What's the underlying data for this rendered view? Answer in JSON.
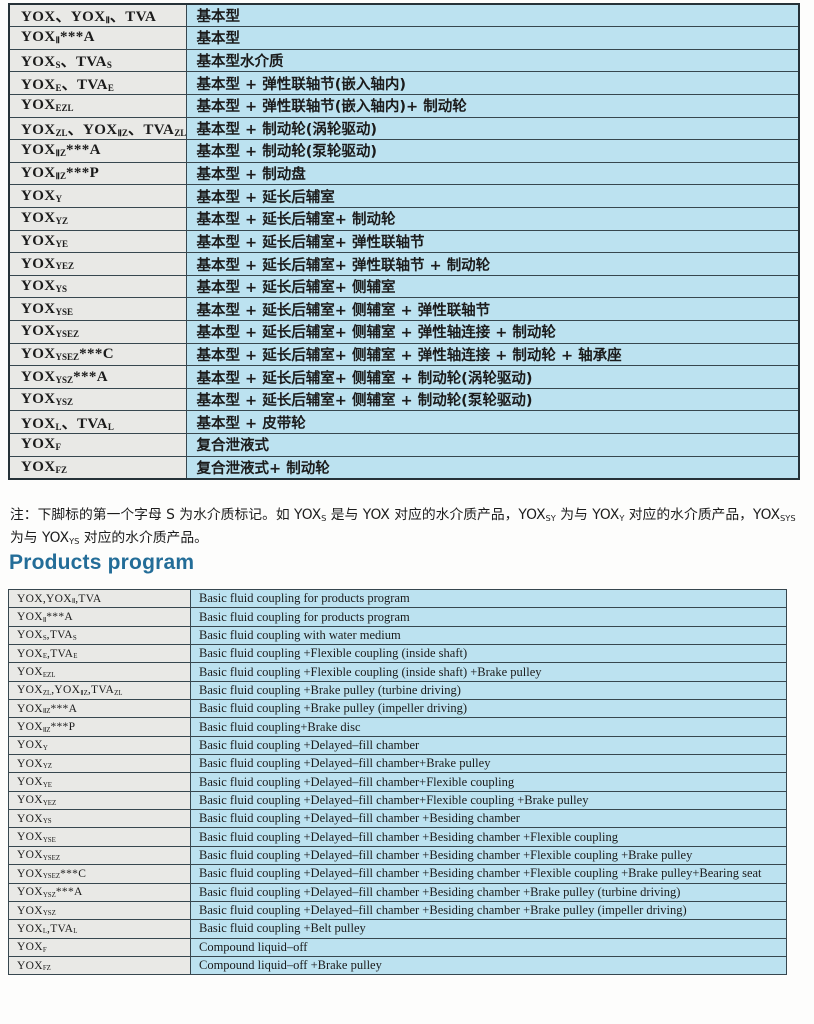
{
  "colors": {
    "cell_gray": "#e9e9e6",
    "cell_blue": "#bce2f0",
    "border_dark": "#37474f",
    "heading_blue": "#236d98",
    "text": "#1b1b1b"
  },
  "cn_table": {
    "rows": [
      {
        "model": "YOX、YOX_{Ⅱ}、TVA",
        "desc": "基本型"
      },
      {
        "model": "YOX_{Ⅱ}***A",
        "desc": "基本型"
      },
      {
        "model": "YOX_{S}、TVA_{S}",
        "desc": "基本型水介质"
      },
      {
        "model": "YOX_{E}、TVA_{E}",
        "desc": "基本型 + 弹性联轴节(嵌入轴内)"
      },
      {
        "model": "YOX_{EZL}",
        "desc": "基本型 + 弹性联轴节(嵌入轴内)+ 制动轮"
      },
      {
        "model": "YOX_{ZL}、YOX_{ⅡZ}、TVA_{ZL}",
        "desc": "基本型 + 制动轮(涡轮驱动)"
      },
      {
        "model": "YOX_{ⅡZ}***A",
        "desc": "基本型 + 制动轮(泵轮驱动)"
      },
      {
        "model": "YOX_{ⅡZ}***P",
        "desc": "基本型 + 制动盘"
      },
      {
        "model": "YOX_{Y}",
        "desc": "基本型 + 延长后辅室"
      },
      {
        "model": "YOX_{YZ}",
        "desc": "基本型 + 延长后辅室+ 制动轮"
      },
      {
        "model": "YOX_{YE}",
        "desc": "基本型 + 延长后辅室+ 弹性联轴节"
      },
      {
        "model": "YOX_{YEZ}",
        "desc": "基本型 + 延长后辅室+ 弹性联轴节 + 制动轮"
      },
      {
        "model": "YOX_{YS}",
        "desc": "基本型 + 延长后辅室+ 侧辅室"
      },
      {
        "model": "YOX_{YSE}",
        "desc": "基本型 + 延长后辅室+ 侧辅室 + 弹性联轴节"
      },
      {
        "model": "YOX_{YSEZ}",
        "desc": "基本型 + 延长后辅室+ 侧辅室 + 弹性轴连接 + 制动轮"
      },
      {
        "model": "YOX_{YSEZ}***C",
        "desc": "基本型 + 延长后辅室+ 侧辅室 + 弹性轴连接 + 制动轮 + 轴承座"
      },
      {
        "model": "YOX_{YSZ}***A",
        "desc": "基本型 + 延长后辅室+ 侧辅室 + 制动轮(涡轮驱动)"
      },
      {
        "model": "YOX_{YSZ}",
        "desc": "基本型 + 延长后辅室+ 侧辅室 + 制动轮(泵轮驱动)"
      },
      {
        "model": "YOX_{L}、TVA_{L}",
        "desc": "基本型 + 皮带轮"
      },
      {
        "model": "YOX_{F}",
        "desc": "复合泄液式"
      },
      {
        "model": "YOX_{FZ}",
        "desc": "复合泄液式+ 制动轮"
      }
    ]
  },
  "note": {
    "text": "注：下脚标的第一个字母 S 为水介质标记。如 YOX_{S} 是与 YOX 对应的水介质产品，YOX_{SY} 为与 YOX_{Y} 对应的水介质产品，YOX_{SYS} 为与 YOX_{YS} 对应的水介质产品。"
  },
  "section": {
    "heading": "Products program"
  },
  "en_table": {
    "rows": [
      {
        "model": "YOX,YOX_{Ⅱ},TVA",
        "desc": "Basic fluid coupling for products program"
      },
      {
        "model": "YOX_{Ⅱ}***A",
        "desc": "Basic fluid coupling for products program"
      },
      {
        "model": "YOX_{S},TVA_{S}",
        "desc": "Basic fluid coupling with water medium"
      },
      {
        "model": "YOX_{E},TVA_{E}",
        "desc": "Basic fluid coupling +Flexible coupling (inside shaft)"
      },
      {
        "model": "YOX_{EZL}",
        "desc": "Basic fluid coupling +Flexible coupling (inside shaft) +Brake pulley"
      },
      {
        "model": "YOX_{ZL},YOX_{ⅡZ},TVA_{ZL}",
        "desc": "Basic fluid coupling +Brake pulley (turbine driving)"
      },
      {
        "model": "YOX_{ⅡZ}***A",
        "desc": "Basic fluid coupling +Brake pulley (impeller driving)"
      },
      {
        "model": "YOX_{ⅡZ}***P",
        "desc": "Basic fluid coupling+Brake disc"
      },
      {
        "model": "YOX_{Y}",
        "desc": "Basic fluid coupling +Delayed–fill chamber"
      },
      {
        "model": "YOX_{YZ}",
        "desc": "Basic fluid coupling +Delayed–fill chamber+Brake pulley"
      },
      {
        "model": "YOX_{YE}",
        "desc": "Basic fluid coupling +Delayed–fill chamber+Flexible coupling"
      },
      {
        "model": "YOX_{YEZ}",
        "desc": "Basic fluid coupling +Delayed–fill chamber+Flexible coupling +Brake pulley"
      },
      {
        "model": "YOX_{YS}",
        "desc": "Basic fluid coupling +Delayed–fill chamber +Besiding chamber"
      },
      {
        "model": "YOX_{YSE}",
        "desc": "Basic fluid coupling +Delayed–fill chamber +Besiding chamber +Flexible coupling"
      },
      {
        "model": "YOX_{YSEZ}",
        "desc": "Basic fluid coupling +Delayed–fill chamber +Besiding chamber +Flexible coupling +Brake pulley"
      },
      {
        "model": "YOX_{YSEZ}***C",
        "desc": "Basic fluid coupling +Delayed–fill chamber +Besiding chamber +Flexible coupling +Brake pulley+Bearing seat"
      },
      {
        "model": "YOX_{YSZ}***A",
        "desc": "Basic fluid coupling +Delayed–fill chamber +Besiding chamber +Brake pulley (turbine driving)"
      },
      {
        "model": "YOX_{YSZ}",
        "desc": "Basic fluid coupling +Delayed–fill chamber +Besiding chamber +Brake pulley (impeller driving)"
      },
      {
        "model": "YOX_{L},TVA_{L}",
        "desc": "Basic fluid coupling +Belt pulley"
      },
      {
        "model": "YOX_{F}",
        "desc": "Compound liquid–off"
      },
      {
        "model": "YOX_{FZ}",
        "desc": "Compound liquid–off +Brake pulley"
      }
    ]
  }
}
